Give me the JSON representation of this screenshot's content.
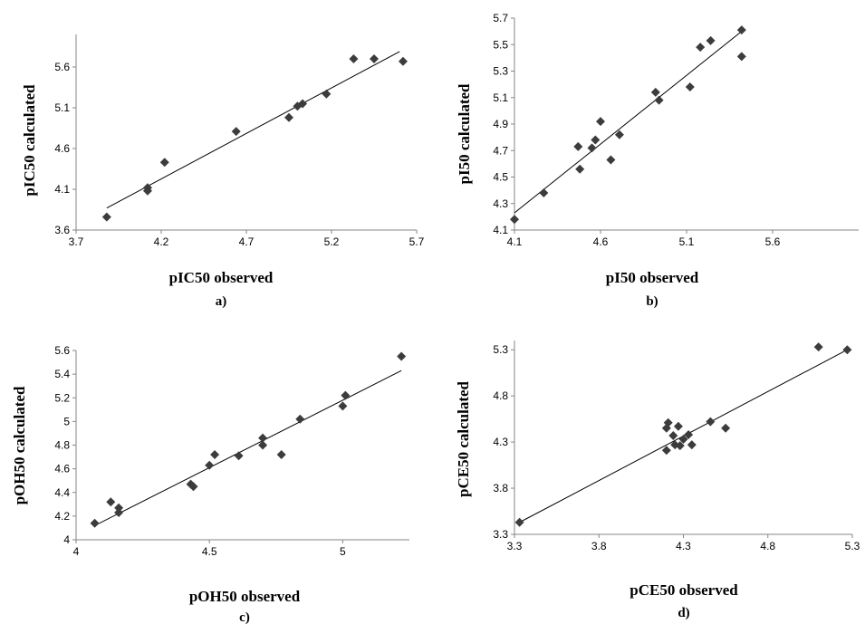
{
  "chart_data": [
    {
      "type": "scatter",
      "title": "",
      "caption": "a)",
      "xlabel": "pIC50 observed",
      "ylabel": "pIC50 calculated",
      "xlim": [
        3.7,
        5.7
      ],
      "ylim": [
        3.6,
        6.0
      ],
      "xticks": [
        "3.7",
        "4.2",
        "4.7",
        "5.2",
        "5.7"
      ],
      "xtick_values": [
        3.7,
        4.2,
        4.7,
        5.2,
        5.7
      ],
      "yticks": [
        "3.6",
        "4.1",
        "4.6",
        "5.1",
        "5.6"
      ],
      "ytick_values": [
        3.6,
        4.1,
        4.6,
        5.1,
        5.6
      ],
      "marker_color": "#3c3c3c",
      "x": [
        3.88,
        4.12,
        4.12,
        4.22,
        4.64,
        4.95,
        5.0,
        5.03,
        5.17,
        5.33,
        5.45,
        5.62
      ],
      "y": [
        3.76,
        4.08,
        4.12,
        4.43,
        4.81,
        4.98,
        5.12,
        5.15,
        5.27,
        5.7,
        5.7,
        5.67
      ],
      "trendline": [
        [
          3.88,
          3.87
        ],
        [
          5.6,
          5.79
        ]
      ]
    },
    {
      "type": "scatter",
      "title": "",
      "caption": "b)",
      "xlabel": "pI50 observed",
      "ylabel": "pI50 calculated",
      "xlim": [
        4.1,
        6.1
      ],
      "ylim": [
        4.1,
        5.7
      ],
      "xticks": [
        "4.1",
        "4.6",
        "5.1",
        "5.6"
      ],
      "xtick_values": [
        4.1,
        4.6,
        5.1,
        5.6
      ],
      "yticks": [
        "4.1",
        "4.3",
        "4.5",
        "4.7",
        "4.9",
        "5.1",
        "5.3",
        "5.5",
        "5.7"
      ],
      "ytick_values": [
        4.1,
        4.3,
        4.5,
        4.7,
        4.9,
        5.1,
        5.3,
        5.5,
        5.7
      ],
      "marker_color": "#3c3c3c",
      "x": [
        4.1,
        4.27,
        4.47,
        4.48,
        4.55,
        4.57,
        4.6,
        4.66,
        4.71,
        4.92,
        4.94,
        5.12,
        5.18,
        5.24,
        5.42,
        5.42
      ],
      "y": [
        4.18,
        4.38,
        4.73,
        4.56,
        4.72,
        4.78,
        4.92,
        4.63,
        4.82,
        5.14,
        5.08,
        5.18,
        5.48,
        5.53,
        5.61,
        5.41
      ],
      "trendline": [
        [
          4.1,
          4.23
        ],
        [
          5.42,
          5.6
        ]
      ]
    },
    {
      "type": "scatter",
      "title": "",
      "caption": "c)",
      "xlabel": "pOH50 observed",
      "ylabel": "pOH50 calculated",
      "xlim": [
        4.0,
        5.25
      ],
      "ylim": [
        4.0,
        5.6
      ],
      "xticks": [
        "4",
        "4.5",
        "5"
      ],
      "xtick_values": [
        4.0,
        4.5,
        5.0
      ],
      "yticks": [
        "4",
        "4.2",
        "4.4",
        "4.6",
        "4.8",
        "5",
        "5.2",
        "5.4",
        "5.6"
      ],
      "ytick_values": [
        4.0,
        4.2,
        4.4,
        4.6,
        4.8,
        5.0,
        5.2,
        5.4,
        5.6
      ],
      "marker_color": "#3c3c3c",
      "x": [
        4.07,
        4.13,
        4.16,
        4.16,
        4.43,
        4.44,
        4.5,
        4.52,
        4.61,
        4.7,
        4.7,
        4.77,
        4.84,
        5.0,
        5.01,
        5.22
      ],
      "y": [
        4.14,
        4.32,
        4.27,
        4.23,
        4.47,
        4.45,
        4.63,
        4.72,
        4.71,
        4.86,
        4.8,
        4.72,
        5.02,
        5.13,
        5.22,
        5.55
      ],
      "trendline": [
        [
          4.07,
          4.12
        ],
        [
          5.22,
          5.43
        ]
      ]
    },
    {
      "type": "scatter",
      "title": "",
      "caption": "d)",
      "xlabel": "pCE50 observed",
      "ylabel": "pCE50 calculated",
      "xlim": [
        3.3,
        5.3
      ],
      "ylim": [
        3.3,
        5.4
      ],
      "xticks": [
        "3.3",
        "3.8",
        "4.3",
        "4.8",
        "5.3"
      ],
      "xtick_values": [
        3.3,
        3.8,
        4.3,
        4.8,
        5.3
      ],
      "yticks": [
        "3.3",
        "3.8",
        "4.3",
        "4.8",
        "5.3"
      ],
      "ytick_values": [
        3.3,
        3.8,
        4.3,
        4.8,
        5.3
      ],
      "marker_color": "#3c3c3c",
      "x": [
        3.33,
        4.2,
        4.2,
        4.21,
        4.24,
        4.25,
        4.27,
        4.28,
        4.3,
        4.33,
        4.35,
        4.46,
        4.55,
        5.1,
        5.27
      ],
      "y": [
        3.43,
        4.21,
        4.45,
        4.51,
        4.37,
        4.27,
        4.47,
        4.26,
        4.33,
        4.38,
        4.27,
        4.52,
        4.45,
        5.33,
        5.3
      ],
      "trendline": [
        [
          3.33,
          3.43
        ],
        [
          5.27,
          5.3
        ]
      ]
    }
  ]
}
